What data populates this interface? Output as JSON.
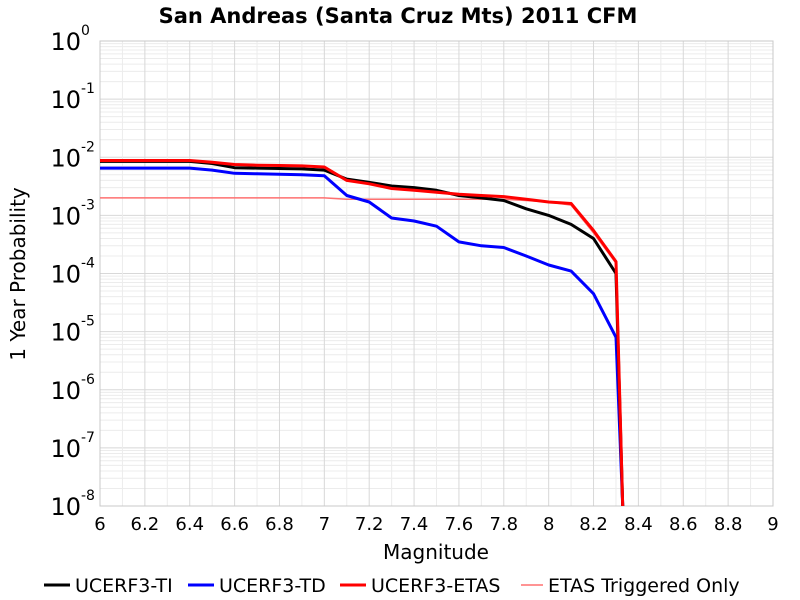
{
  "chart_data": {
    "type": "line",
    "title": "San Andreas (Santa Cruz Mts) 2011 CFM",
    "xlabel": "Magnitude",
    "ylabel": "1 Year Probability",
    "xlim": [
      6,
      9
    ],
    "ylim": [
      1e-08,
      1
    ],
    "yscale": "log",
    "grid": true,
    "legend_position": "bottom",
    "x_ticks": [
      "6",
      "6.2",
      "6.4",
      "6.6",
      "6.8",
      "7",
      "7.2",
      "7.4",
      "7.6",
      "7.8",
      "8",
      "8.2",
      "8.4",
      "8.6",
      "8.8",
      "9"
    ],
    "y_ticks": [
      {
        "value": 1e-08,
        "base": "10",
        "exp": "-8"
      },
      {
        "value": 1e-07,
        "base": "10",
        "exp": "-7"
      },
      {
        "value": 1e-06,
        "base": "10",
        "exp": "-6"
      },
      {
        "value": 1e-05,
        "base": "10",
        "exp": "-5"
      },
      {
        "value": 0.0001,
        "base": "10",
        "exp": "-4"
      },
      {
        "value": 0.001,
        "base": "10",
        "exp": "-3"
      },
      {
        "value": 0.01,
        "base": "10",
        "exp": "-2"
      },
      {
        "value": 0.1,
        "base": "10",
        "exp": "-1"
      },
      {
        "value": 1,
        "base": "10",
        "exp": "0"
      }
    ],
    "series": [
      {
        "name": "UCERF3-TI",
        "color": "#000000",
        "width": 3,
        "x": [
          6.0,
          6.1,
          6.2,
          6.3,
          6.4,
          6.5,
          6.6,
          6.7,
          6.8,
          6.9,
          7.0,
          7.1,
          7.2,
          7.3,
          7.4,
          7.5,
          7.6,
          7.7,
          7.8,
          7.9,
          8.0,
          8.1,
          8.2,
          8.3,
          8.33
        ],
        "y": [
          0.0085,
          0.0085,
          0.0085,
          0.0085,
          0.0085,
          0.0078,
          0.0066,
          0.0065,
          0.0064,
          0.0063,
          0.006,
          0.0042,
          0.0037,
          0.0032,
          0.003,
          0.0027,
          0.0022,
          0.002,
          0.0018,
          0.0013,
          0.001,
          0.0007,
          0.0004,
          0.0001,
          1e-08
        ]
      },
      {
        "name": "UCERF3-TD",
        "color": "#0000ff",
        "width": 3,
        "x": [
          6.0,
          6.1,
          6.2,
          6.3,
          6.4,
          6.5,
          6.6,
          6.7,
          6.8,
          6.9,
          7.0,
          7.1,
          7.2,
          7.3,
          7.4,
          7.5,
          7.6,
          7.7,
          7.8,
          7.9,
          8.0,
          8.1,
          8.2,
          8.3,
          8.33
        ],
        "y": [
          0.0065,
          0.0065,
          0.0065,
          0.0065,
          0.0065,
          0.006,
          0.0053,
          0.0052,
          0.0051,
          0.005,
          0.0048,
          0.0022,
          0.0017,
          0.0009,
          0.0008,
          0.00065,
          0.00035,
          0.0003,
          0.00028,
          0.0002,
          0.00014,
          0.00011,
          4.5e-05,
          8e-06,
          1e-08
        ]
      },
      {
        "name": "UCERF3-ETAS",
        "color": "#ff0000",
        "width": 3,
        "x": [
          6.0,
          6.1,
          6.2,
          6.3,
          6.4,
          6.5,
          6.6,
          6.7,
          6.8,
          6.9,
          7.0,
          7.1,
          7.2,
          7.3,
          7.4,
          7.5,
          7.6,
          7.7,
          7.8,
          7.9,
          8.0,
          8.1,
          8.2,
          8.3,
          8.33
        ],
        "y": [
          0.0088,
          0.0088,
          0.0088,
          0.0088,
          0.0088,
          0.0082,
          0.0075,
          0.0073,
          0.0072,
          0.0071,
          0.0068,
          0.004,
          0.0035,
          0.0029,
          0.0027,
          0.0025,
          0.0023,
          0.0022,
          0.0021,
          0.0019,
          0.0017,
          0.0016,
          0.00055,
          0.00016,
          1e-08
        ]
      },
      {
        "name": "ETAS Triggered Only",
        "color": "#ff7070",
        "width": 1.5,
        "x": [
          6.0,
          6.5,
          7.0,
          7.1,
          7.2,
          7.6,
          7.8,
          7.9,
          8.0,
          8.1,
          8.2,
          8.3,
          8.33
        ],
        "y": [
          0.002,
          0.002,
          0.002,
          0.0019,
          0.0019,
          0.0019,
          0.0019,
          0.0018,
          0.0017,
          0.0015,
          0.0005,
          0.00015,
          1e-08
        ]
      }
    ]
  }
}
